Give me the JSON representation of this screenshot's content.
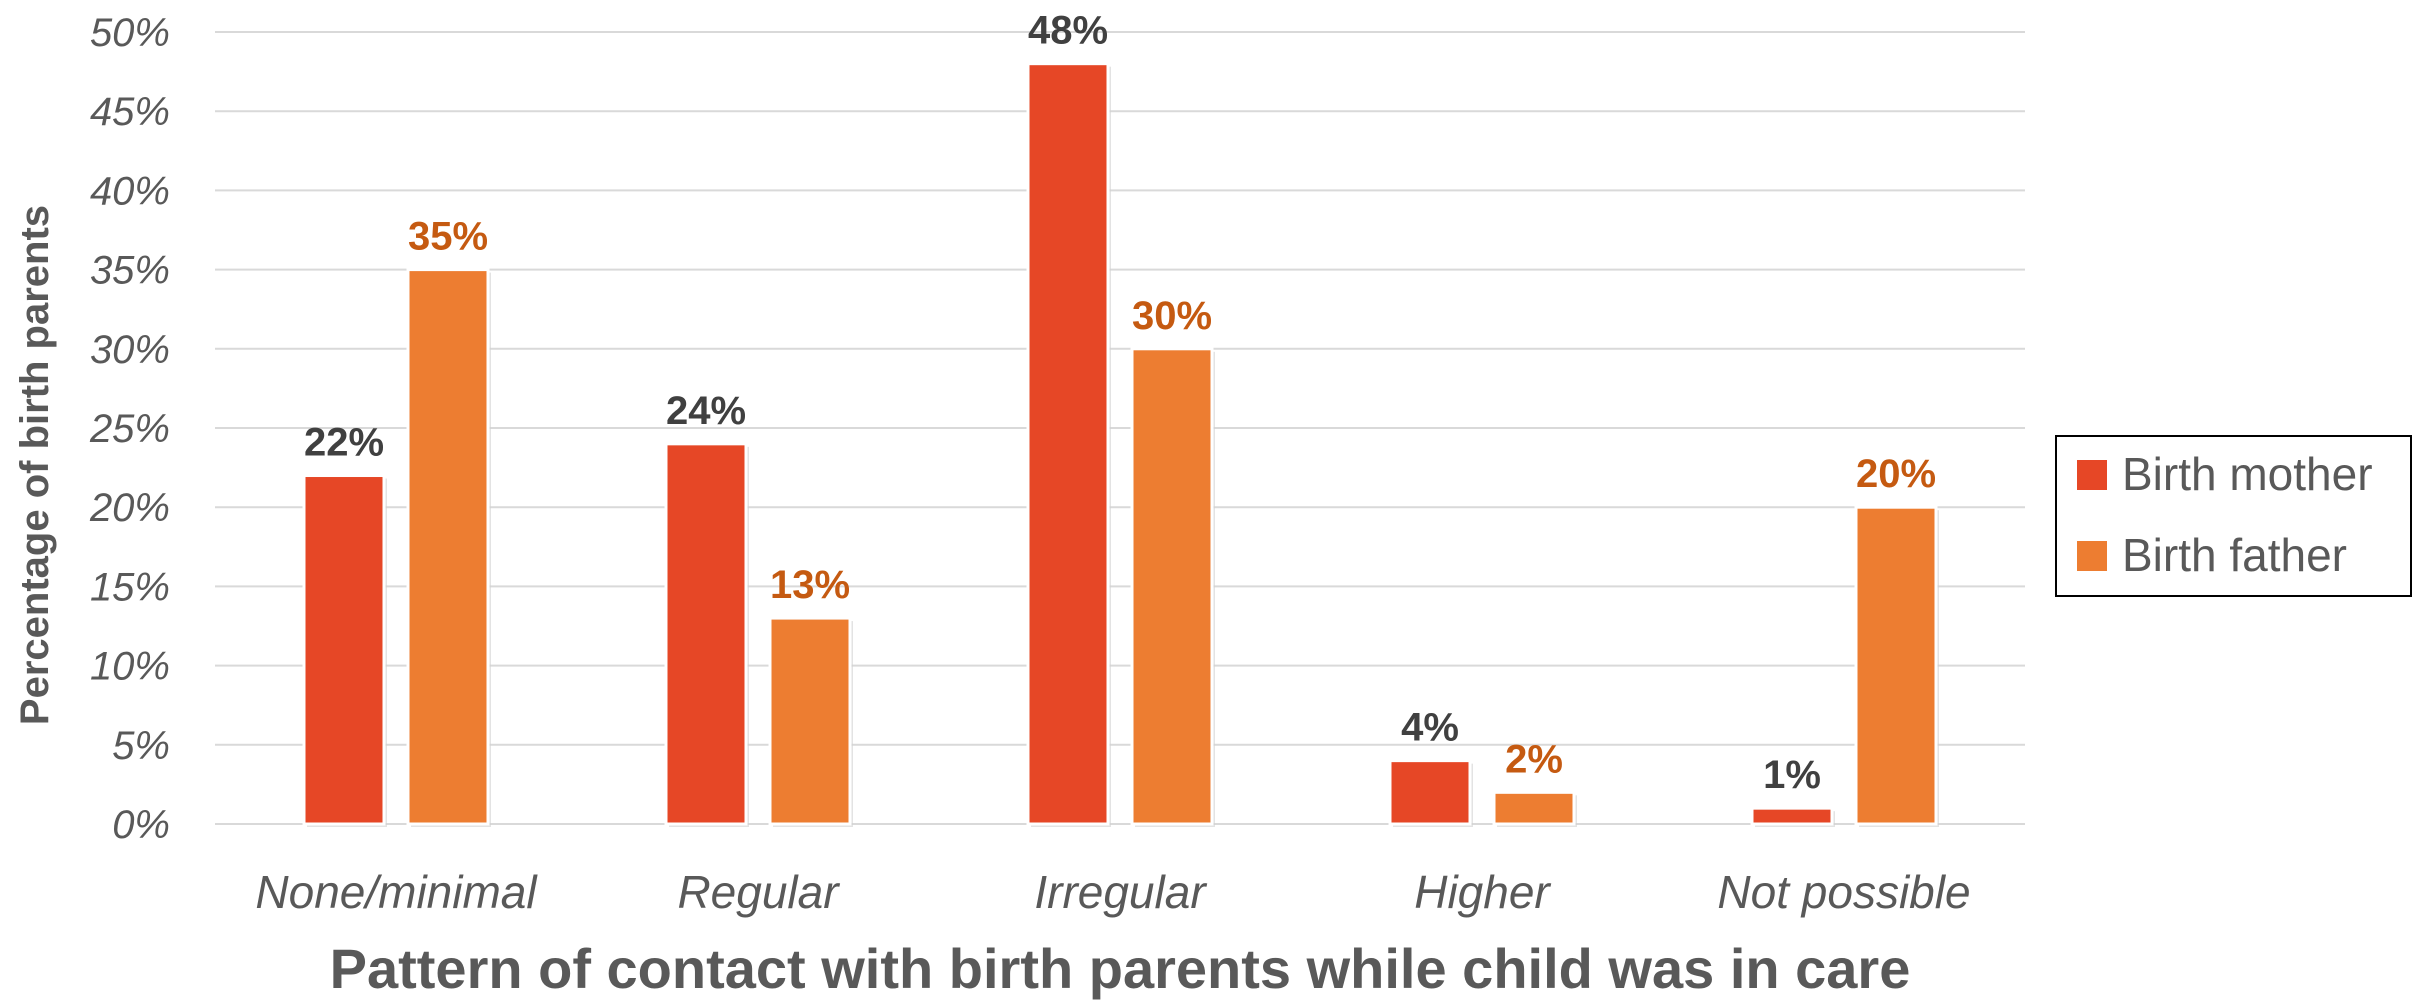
{
  "chart_data": {
    "type": "bar",
    "title": "",
    "xlabel": "Pattern of contact with birth parents while child was in care",
    "ylabel": "Percentage of birth parents",
    "ylim": [
      0,
      50
    ],
    "yticks": [
      0,
      5,
      10,
      15,
      20,
      25,
      30,
      35,
      40,
      45,
      50
    ],
    "ytick_labels": [
      "0%",
      "5%",
      "10%",
      "15%",
      "20%",
      "25%",
      "30%",
      "35%",
      "40%",
      "45%",
      "50%"
    ],
    "categories": [
      "None/minimal",
      "Regular",
      "Irregular",
      "Higher",
      "Not possible"
    ],
    "series": [
      {
        "name": "Birth mother",
        "color": "#E64726",
        "label_color": "#404040",
        "values": [
          22,
          24,
          48,
          4,
          1
        ],
        "labels": [
          "22%",
          "24%",
          "48%",
          "4%",
          "1%"
        ]
      },
      {
        "name": "Birth father",
        "color": "#ED7D31",
        "label_color": "#C55A11",
        "values": [
          35,
          13,
          30,
          2,
          20
        ],
        "labels": [
          "35%",
          "13%",
          "30%",
          "2%",
          "20%"
        ]
      }
    ],
    "grid": true,
    "grid_color": "#D9D9D9",
    "legend_position": "right"
  }
}
